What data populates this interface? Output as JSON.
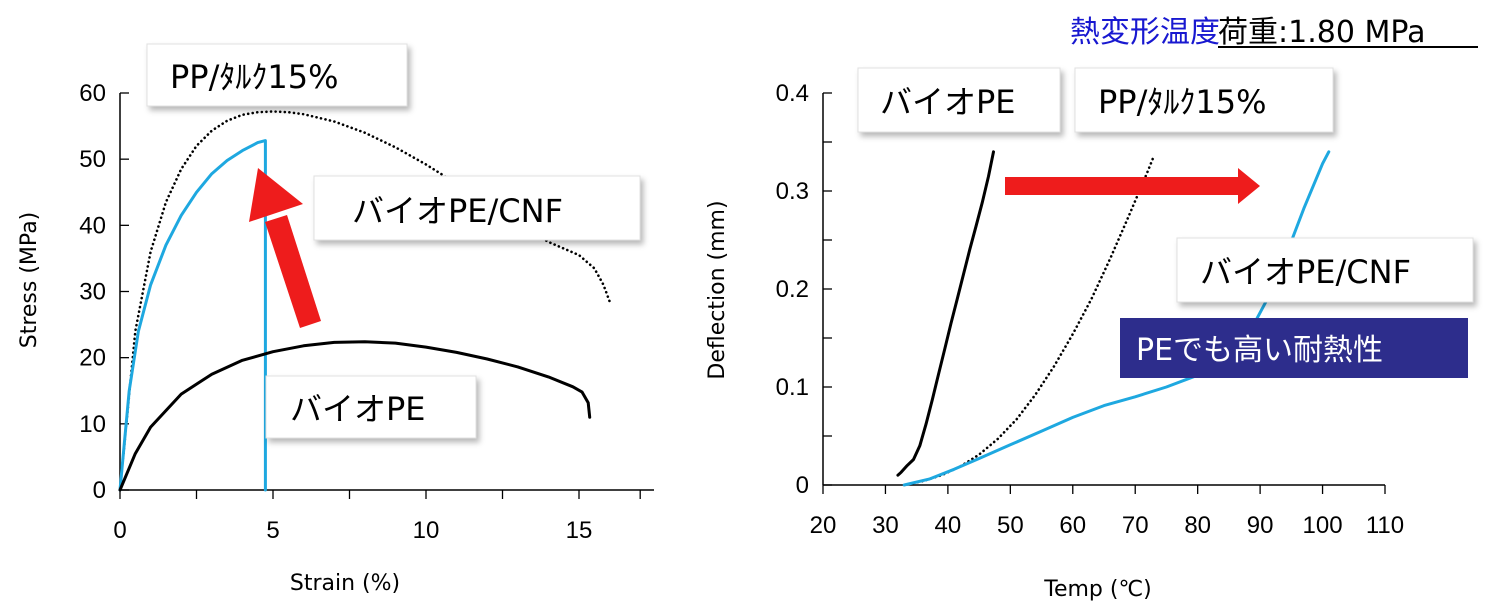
{
  "header": {
    "title": "熱変形温度",
    "load_label": "荷重:1.80 MPa",
    "title_color": "#1818d0"
  },
  "chart_data": [
    {
      "type": "line",
      "xlabel": "Strain (%)",
      "ylabel": "Stress (MPa)",
      "xlim": [
        0,
        17
      ],
      "ylim": [
        0,
        60
      ],
      "x_ticks": [
        "0",
        "5",
        "10",
        "15"
      ],
      "y_ticks": [
        "0",
        "10",
        "20",
        "30",
        "40",
        "50",
        "60"
      ],
      "labels": {
        "pp": "PP/ﾀﾙｸ15%",
        "cnf": "バイオPE/CNF",
        "pe": "バイオPE"
      },
      "series": [
        {
          "key": "pp",
          "color": "#000000",
          "style": "dotted",
          "x": [
            0,
            0.5,
            1.0,
            1.5,
            2.0,
            2.5,
            3.0,
            3.5,
            4.0,
            4.5,
            5.0,
            5.5,
            6.0,
            7.0,
            8.0,
            9.0,
            10.0,
            11.0,
            12.0,
            13.0,
            14.0,
            15.0,
            15.5,
            15.8,
            16.0
          ],
          "y": [
            0,
            24,
            36,
            43.5,
            48.5,
            52,
            54.3,
            55.8,
            56.7,
            57.1,
            57.2,
            57.1,
            56.8,
            55.7,
            54.0,
            51.8,
            49.2,
            46.3,
            43.3,
            40.2,
            37.5,
            35.5,
            33.5,
            31.0,
            28.5
          ]
        },
        {
          "key": "cnf",
          "color": "#1ea8e0",
          "style": "solid",
          "x": [
            0,
            0.3,
            0.6,
            1.0,
            1.5,
            2.0,
            2.5,
            3.0,
            3.5,
            4.0,
            4.5,
            4.75,
            4.75,
            4.75
          ],
          "y": [
            0,
            15,
            24,
            31,
            37,
            41.5,
            45,
            47.8,
            49.8,
            51.3,
            52.5,
            52.8,
            30,
            0
          ]
        },
        {
          "key": "pe",
          "color": "#000000",
          "style": "solid",
          "x": [
            0,
            0.5,
            1.0,
            2.0,
            3.0,
            4.0,
            5.0,
            6.0,
            7.0,
            8.0,
            9.0,
            10.0,
            11.0,
            12.0,
            13.0,
            14.0,
            14.8,
            15.1,
            15.3,
            15.35
          ],
          "y": [
            0,
            5.5,
            9.5,
            14.5,
            17.5,
            19.6,
            20.9,
            21.8,
            22.3,
            22.4,
            22.2,
            21.6,
            20.8,
            19.8,
            18.6,
            17.1,
            15.6,
            14.8,
            13.2,
            11.0
          ]
        }
      ]
    },
    {
      "type": "line",
      "xlabel": "Temp (℃)",
      "ylabel": "Deflection  (mm)",
      "xlim": [
        20,
        110
      ],
      "ylim": [
        0,
        0.4
      ],
      "x_ticks": [
        "20",
        "30",
        "40",
        "50",
        "60",
        "70",
        "80",
        "90",
        "100",
        "110"
      ],
      "y_ticks": [
        "0",
        "0.1",
        "0.2",
        "0.3",
        "0.4"
      ],
      "labels": {
        "pe": "バイオPE",
        "pp": "PP/ﾀﾙｸ15%",
        "cnf": "バイオPE/CNF"
      },
      "badge": {
        "text": "PEでも高い耐熱性",
        "color": "#2d2d8c"
      },
      "series": [
        {
          "key": "pe",
          "color": "#000000",
          "style": "solid",
          "x": [
            32,
            32.5,
            33.5,
            34.5,
            35.5,
            36.5,
            37.5,
            38.5,
            39.5,
            40.5,
            41.5,
            42.5,
            43.5,
            44.5,
            45.5,
            46.5,
            47.3
          ],
          "y": [
            0.01,
            0.013,
            0.02,
            0.026,
            0.04,
            0.062,
            0.087,
            0.113,
            0.139,
            0.165,
            0.19,
            0.215,
            0.24,
            0.264,
            0.288,
            0.315,
            0.34
          ]
        },
        {
          "key": "pp",
          "color": "#000000",
          "style": "dotted",
          "x": [
            33,
            36,
            39,
            42,
            45,
            48,
            51,
            54,
            57,
            60,
            63,
            66,
            69,
            72,
            73
          ],
          "y": [
            0,
            0.004,
            0.01,
            0.019,
            0.031,
            0.047,
            0.067,
            0.092,
            0.121,
            0.154,
            0.19,
            0.231,
            0.275,
            0.32,
            0.336
          ]
        },
        {
          "key": "cnf",
          "color": "#1ea8e0",
          "style": "solid",
          "x": [
            33,
            37,
            41,
            45,
            50,
            55,
            60,
            65,
            70,
            75,
            80,
            85,
            88,
            91,
            94,
            97,
            100,
            101
          ],
          "y": [
            0,
            0.006,
            0.016,
            0.027,
            0.041,
            0.055,
            0.069,
            0.081,
            0.09,
            0.1,
            0.112,
            0.13,
            0.152,
            0.188,
            0.232,
            0.282,
            0.328,
            0.34
          ]
        }
      ]
    }
  ]
}
